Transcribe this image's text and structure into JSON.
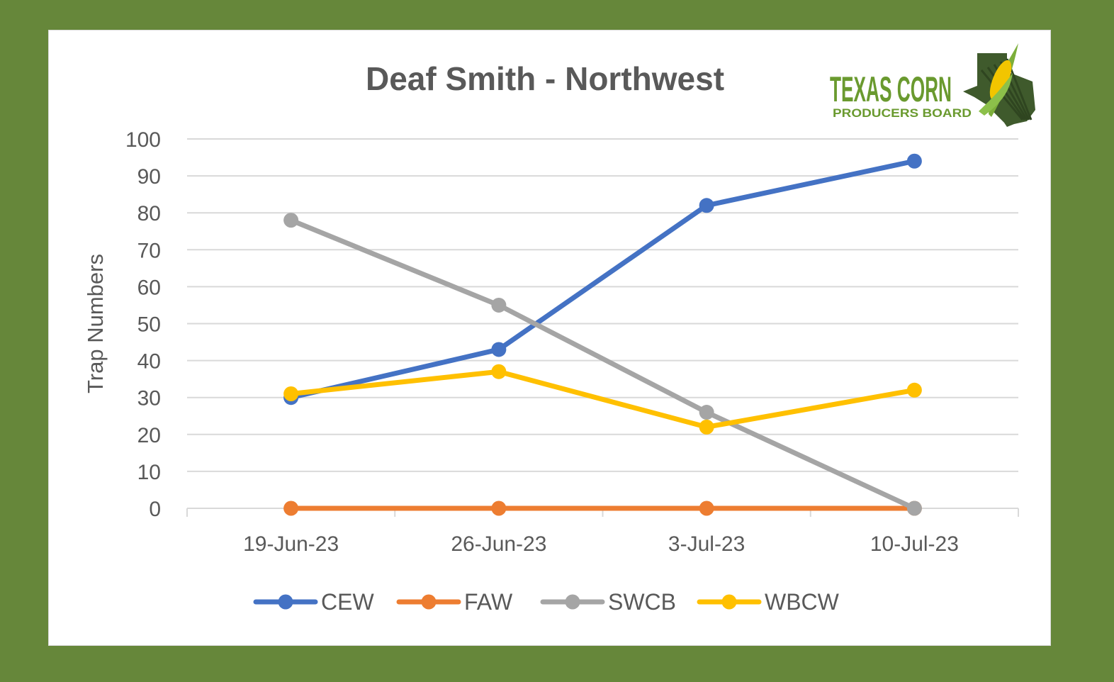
{
  "chart_data": {
    "type": "line",
    "title": "Deaf Smith - Northwest",
    "xlabel": "",
    "ylabel": "Trap Numbers",
    "categories": [
      "19-Jun-23",
      "26-Jun-23",
      "3-Jul-23",
      "10-Jul-23"
    ],
    "ylim": [
      0,
      100
    ],
    "yticks": [
      "0",
      "10",
      "20",
      "30",
      "40",
      "50",
      "60",
      "70",
      "80",
      "90",
      "100"
    ],
    "grid": "horizontal",
    "legend": "bottom",
    "series": [
      {
        "name": "CEW",
        "color": "#4472c4",
        "values": [
          30,
          43,
          82,
          94
        ]
      },
      {
        "name": "FAW",
        "color": "#ed7d31",
        "values": [
          0,
          0,
          0,
          0
        ]
      },
      {
        "name": "SWCB",
        "color": "#a5a5a5",
        "values": [
          78,
          55,
          26,
          0
        ]
      },
      {
        "name": "WBCW",
        "color": "#ffc000",
        "values": [
          31,
          37,
          22,
          32
        ]
      }
    ]
  },
  "logo": {
    "line1": "TEXAS CORN",
    "line2": "PRODUCERS BOARD",
    "text_color": "#6a9a2f",
    "state_color": "#3f5a2c",
    "corn_color": "#f2c500"
  },
  "colors": {
    "frame": "#66873a",
    "gridline": "#d9d9d9",
    "text": "#595959"
  }
}
